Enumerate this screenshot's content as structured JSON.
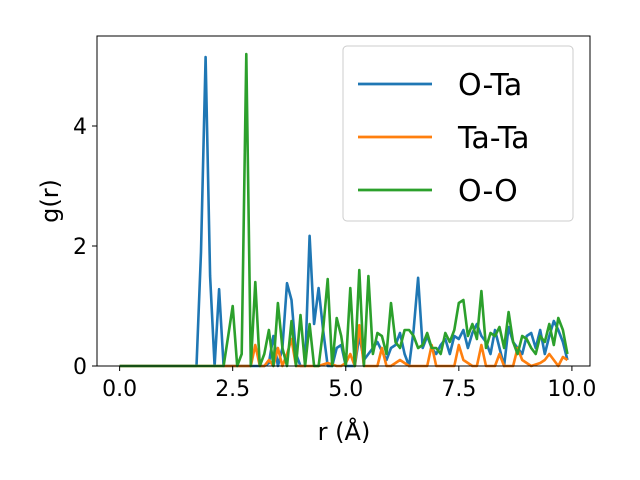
{
  "chart_data": {
    "type": "line",
    "title": "",
    "xlabel": "r (Å)",
    "ylabel": "g(r)",
    "xlim": [
      -0.5,
      10.4
    ],
    "ylim": [
      0,
      5.5
    ],
    "xticks": [
      0.0,
      2.5,
      5.0,
      7.5,
      10.0
    ],
    "xtick_labels": [
      "0.0",
      "2.5",
      "5.0",
      "7.5",
      "10.0"
    ],
    "yticks": [
      0,
      2,
      4
    ],
    "ytick_labels": [
      "0",
      "2",
      "4"
    ],
    "grid": false,
    "legend_position": "top-right",
    "series": [
      {
        "name": "O-Ta",
        "color": "#1f77b4",
        "x": [
          0.0,
          1.7,
          1.8,
          1.9,
          2.0,
          2.1,
          2.2,
          2.3,
          2.4,
          2.6,
          3.0,
          3.1,
          3.2,
          3.3,
          3.4,
          3.5,
          3.6,
          3.7,
          3.8,
          3.9,
          4.0,
          4.1,
          4.2,
          4.3,
          4.4,
          4.5,
          4.6,
          4.7,
          4.8,
          4.9,
          5.0,
          5.1,
          5.2,
          5.3,
          5.4,
          5.5,
          5.6,
          5.7,
          5.8,
          5.9,
          6.0,
          6.1,
          6.2,
          6.3,
          6.4,
          6.5,
          6.6,
          6.7,
          6.8,
          6.9,
          7.0,
          7.1,
          7.2,
          7.3,
          7.4,
          7.5,
          7.6,
          7.7,
          7.8,
          7.9,
          8.0,
          8.1,
          8.2,
          8.3,
          8.4,
          8.5,
          8.6,
          8.7,
          8.8,
          8.9,
          9.0,
          9.1,
          9.2,
          9.3,
          9.4,
          9.5,
          9.6,
          9.7,
          9.8,
          9.9
        ],
        "y": [
          0.0,
          0.0,
          1.9,
          5.15,
          1.5,
          0.0,
          1.28,
          0.0,
          0.0,
          0.0,
          0.0,
          0.0,
          0.0,
          0.05,
          0.5,
          0.0,
          0.3,
          1.38,
          1.1,
          0.2,
          0.0,
          0.0,
          2.17,
          0.7,
          1.3,
          0.6,
          0.0,
          0.0,
          0.3,
          0.35,
          0.0,
          0.0,
          0.0,
          0.5,
          0.1,
          0.2,
          0.3,
          0.4,
          0.25,
          0.1,
          0.3,
          0.35,
          0.55,
          0.2,
          0.0,
          0.6,
          1.47,
          0.3,
          0.5,
          0.3,
          0.2,
          0.35,
          0.45,
          0.2,
          0.5,
          0.45,
          0.6,
          0.3,
          0.55,
          0.7,
          0.5,
          0.4,
          0.2,
          0.6,
          0.3,
          0.0,
          0.65,
          0.4,
          0.3,
          0.2,
          0.5,
          0.55,
          0.3,
          0.6,
          0.2,
          0.5,
          0.75,
          0.6,
          0.4,
          0.1
        ]
      },
      {
        "name": "Ta-Ta",
        "color": "#ff7f0e",
        "x": [
          0.0,
          2.9,
          3.0,
          3.1,
          3.2,
          3.3,
          3.4,
          3.5,
          3.6,
          3.7,
          3.8,
          3.9,
          4.0,
          4.2,
          4.4,
          4.6,
          4.8,
          4.9,
          5.0,
          5.1,
          5.2,
          5.3,
          5.4,
          5.5,
          5.7,
          5.8,
          5.9,
          6.0,
          6.2,
          6.4,
          6.5,
          6.6,
          6.8,
          6.9,
          7.0,
          7.2,
          7.4,
          7.5,
          7.6,
          7.8,
          7.9,
          8.0,
          8.1,
          8.3,
          8.4,
          8.5,
          8.7,
          8.8,
          8.9,
          9.1,
          9.3,
          9.4,
          9.5,
          9.7,
          9.8,
          9.9
        ],
        "y": [
          0.0,
          0.0,
          0.35,
          0.0,
          0.0,
          0.1,
          0.0,
          0.3,
          0.0,
          0.2,
          0.45,
          0.0,
          0.0,
          0.0,
          0.0,
          0.05,
          0.0,
          0.0,
          0.05,
          0.2,
          0.0,
          0.68,
          0.0,
          0.0,
          0.0,
          0.3,
          0.0,
          0.0,
          0.1,
          0.0,
          0.0,
          0.0,
          0.0,
          0.35,
          0.0,
          0.0,
          0.0,
          0.35,
          0.1,
          0.0,
          0.0,
          0.35,
          0.0,
          0.0,
          0.2,
          0.0,
          0.0,
          0.3,
          0.1,
          0.0,
          0.05,
          0.1,
          0.2,
          0.0,
          0.15,
          0.1
        ]
      },
      {
        "name": "O-O",
        "color": "#2ca02c",
        "x": [
          0.0,
          2.3,
          2.4,
          2.5,
          2.6,
          2.7,
          2.8,
          2.9,
          3.0,
          3.1,
          3.2,
          3.3,
          3.4,
          3.5,
          3.6,
          3.7,
          3.8,
          3.9,
          4.0,
          4.1,
          4.2,
          4.3,
          4.4,
          4.5,
          4.6,
          4.7,
          4.8,
          4.9,
          5.0,
          5.1,
          5.2,
          5.3,
          5.4,
          5.5,
          5.6,
          5.7,
          5.8,
          5.9,
          6.0,
          6.1,
          6.2,
          6.3,
          6.4,
          6.5,
          6.6,
          6.7,
          6.8,
          6.9,
          7.0,
          7.1,
          7.2,
          7.3,
          7.4,
          7.5,
          7.6,
          7.7,
          7.8,
          7.9,
          8.0,
          8.1,
          8.2,
          8.3,
          8.4,
          8.5,
          8.6,
          8.7,
          8.8,
          8.9,
          9.0,
          9.1,
          9.2,
          9.3,
          9.4,
          9.5,
          9.6,
          9.7,
          9.8,
          9.9
        ],
        "y": [
          0.0,
          0.0,
          0.5,
          1.0,
          0.0,
          0.2,
          5.2,
          0.0,
          1.4,
          0.0,
          0.2,
          0.6,
          0.0,
          1.05,
          0.3,
          0.0,
          0.75,
          0.0,
          0.85,
          0.0,
          0.7,
          0.0,
          0.0,
          0.6,
          1.45,
          0.0,
          0.8,
          0.5,
          0.0,
          1.3,
          0.0,
          1.6,
          0.0,
          1.5,
          0.2,
          0.55,
          0.5,
          0.2,
          1.05,
          0.4,
          0.3,
          0.6,
          0.6,
          0.5,
          0.3,
          0.35,
          0.55,
          0.3,
          0.3,
          0.2,
          0.55,
          0.4,
          0.6,
          1.05,
          1.1,
          0.5,
          0.7,
          0.45,
          1.25,
          0.3,
          0.55,
          0.5,
          0.65,
          0.3,
          0.9,
          0.4,
          0.2,
          0.5,
          0.45,
          0.3,
          0.2,
          0.5,
          0.4,
          0.7,
          0.35,
          0.8,
          0.6,
          0.2
        ]
      }
    ]
  }
}
